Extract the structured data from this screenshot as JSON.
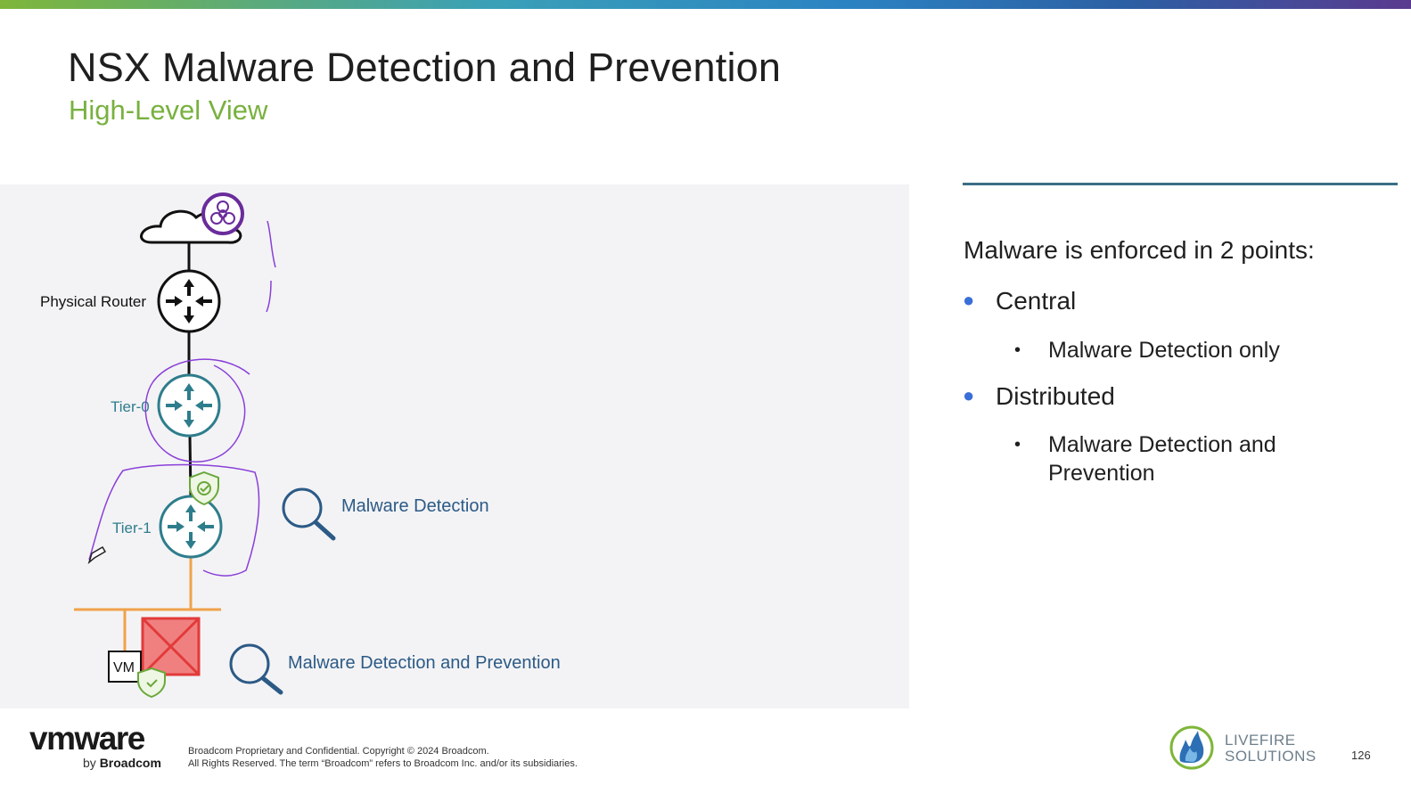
{
  "slide": {
    "title": "NSX Malware Detection and Prevention",
    "subtitle": "High-Level View",
    "page_number": "126"
  },
  "diagram": {
    "labels": {
      "physical_router": "Physical Router",
      "tier0": "Tier-0",
      "tier1": "Tier-1",
      "vm": "VM"
    },
    "callouts": {
      "central": "Malware Detection",
      "distributed": "Malware Detection and Prevention"
    }
  },
  "content": {
    "heading": "Malware is enforced in 2 points:",
    "bullets": [
      {
        "label": "Central",
        "sub": "Malware Detection only"
      },
      {
        "label": "Distributed",
        "sub": "Malware Detection and Prevention"
      }
    ]
  },
  "footer": {
    "logo": "vmware",
    "by": "by",
    "by_brand": "Broadcom",
    "legal_line1": "Broadcom Proprietary and Confidential. Copyright © 2024 Broadcom.",
    "legal_line2": "All Rights Reserved. The term “Broadcom” refers to Broadcom Inc. and/or its subsidiaries.",
    "partner_line1": "LIVEFIRE",
    "partner_line2": "SOLUTIONS"
  },
  "colors": {
    "accent_green": "#78b13f",
    "router_teal": "#2e7d8c",
    "annotation_purple": "#8a3fd8",
    "bullet_blue": "#3a6fd8",
    "link_orange": "#f0a24a",
    "callout_blue": "#2c5a86"
  },
  "icons": [
    "biohazard-icon",
    "cloud-icon",
    "router-icon",
    "shield-check-icon",
    "magnifier-icon",
    "pencil-cursor-icon",
    "livefire-flame-icon"
  ]
}
